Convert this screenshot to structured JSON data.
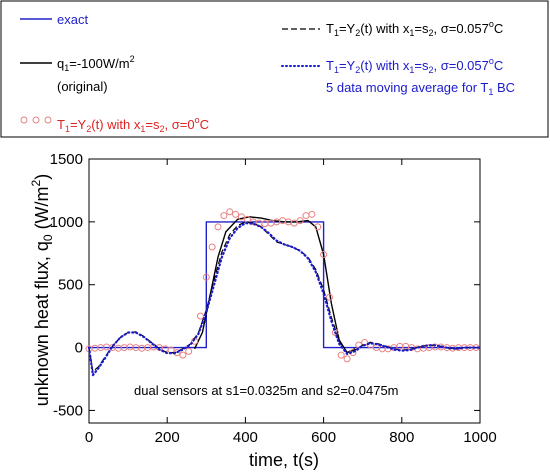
{
  "chart_data": {
    "type": "line",
    "xlabel": "time, t(s)",
    "ylabel": "unknown heat flux, q0 (W/m2)",
    "xlim": [
      0,
      1000
    ],
    "ylim": [
      -600,
      1500
    ],
    "x_ticks": [
      0,
      200,
      400,
      600,
      800,
      1000
    ],
    "y_ticks": [
      -500,
      0,
      500,
      1000,
      1500
    ],
    "annotation": "dual sensors at s1=0.0325m and s2=0.0475m",
    "legend_position": "top, outside plot",
    "legend": {
      "exact": "exact",
      "original_main": "q1=-100W/m2",
      "original_sub": "(original)",
      "sigma0": "T1=Y2(t)  with  x1=s2, σ=0°C",
      "sigma057": "T1=Y2(t)  with  x1=s2, σ=0.057°C",
      "moving_avg_main": "T1=Y2(t)  with  x1=s2, σ=0.057°C",
      "moving_avg_sub": "5 data moving average for T1 BC"
    },
    "series": [
      {
        "name": "exact",
        "style": "solid",
        "color": "#2222cc",
        "x": [
          0,
          300,
          300,
          600,
          600,
          1000
        ],
        "y": [
          0,
          0,
          1000,
          1000,
          0,
          0
        ]
      },
      {
        "name": "q1=-100W/m2 (original)",
        "style": "solid",
        "color": "#000000",
        "x": [
          270,
          290,
          310,
          330,
          350,
          380,
          410,
          440,
          470,
          500,
          530,
          560,
          580,
          600,
          620,
          640,
          660,
          680
        ],
        "y": [
          -10,
          120,
          420,
          720,
          920,
          1020,
          1040,
          1030,
          1010,
          1000,
          1000,
          1010,
          960,
          740,
          350,
          60,
          -40,
          -10
        ]
      },
      {
        "name": "T1=Y2(t) with x1=s2, σ=0°C",
        "style": "circles",
        "color": "#e88080",
        "x": [
          0,
          15,
          30,
          45,
          60,
          75,
          90,
          105,
          120,
          135,
          150,
          165,
          180,
          195,
          210,
          225,
          240,
          255,
          270,
          285,
          300,
          315,
          330,
          345,
          360,
          375,
          390,
          405,
          420,
          435,
          450,
          465,
          480,
          495,
          510,
          525,
          540,
          555,
          570,
          585,
          600,
          615,
          630,
          645,
          660,
          675,
          690,
          705,
          720,
          735,
          750,
          765,
          780,
          795,
          810,
          825,
          840,
          855,
          870,
          885,
          900,
          915,
          930,
          945,
          960,
          975,
          990
        ],
        "y": [
          -10,
          -5,
          0,
          5,
          0,
          -5,
          0,
          5,
          0,
          -5,
          0,
          5,
          0,
          -10,
          -20,
          -40,
          -60,
          -30,
          50,
          250,
          560,
          800,
          960,
          1050,
          1080,
          1060,
          1040,
          1020,
          1000,
          990,
          985,
          990,
          1000,
          1010,
          1000,
          990,
          1010,
          1050,
          1060,
          960,
          740,
          400,
          120,
          -60,
          -90,
          -40,
          20,
          40,
          20,
          0,
          -10,
          -10,
          0,
          10,
          10,
          0,
          -10,
          -5,
          0,
          5,
          5,
          0,
          -5,
          0,
          0,
          0,
          0
        ]
      },
      {
        "name": "T1=Y2(t) with x1=s2, σ=0.057°C",
        "style": "dashed",
        "color": "#000000",
        "x": [
          0,
          10,
          25,
          40,
          60,
          80,
          100,
          120,
          140,
          160,
          180,
          200,
          220,
          240,
          260,
          280,
          300,
          320,
          340,
          360,
          380,
          400,
          420,
          440,
          460,
          480,
          500,
          520,
          540,
          560,
          580,
          600,
          620,
          640,
          660,
          680,
          700,
          720,
          740,
          760,
          780,
          800,
          820,
          840,
          860,
          880,
          900,
          920,
          940,
          960,
          980,
          1000
        ],
        "y": [
          0,
          -190,
          -150,
          -80,
          10,
          80,
          120,
          125,
          90,
          40,
          -10,
          -40,
          -40,
          -10,
          30,
          120,
          300,
          540,
          760,
          900,
          970,
          1000,
          990,
          960,
          900,
          840,
          820,
          800,
          770,
          720,
          620,
          460,
          240,
          50,
          -40,
          -20,
          20,
          40,
          30,
          10,
          -10,
          -20,
          -15,
          0,
          15,
          20,
          10,
          -5,
          -10,
          0,
          0,
          0
        ]
      },
      {
        "name": "T1=Y2(t) with x1=s2, σ=0.057°C, 5 data moving average for T1 BC",
        "style": "dotted",
        "color": "#1a1acc",
        "x": [
          0,
          10,
          25,
          40,
          60,
          80,
          100,
          120,
          140,
          160,
          180,
          200,
          220,
          240,
          260,
          280,
          300,
          320,
          340,
          360,
          380,
          400,
          420,
          440,
          460,
          480,
          500,
          520,
          540,
          560,
          580,
          600,
          620,
          640,
          660,
          680,
          700,
          720,
          740,
          760,
          780,
          800,
          820,
          840,
          860,
          880,
          900,
          920,
          940,
          960,
          980,
          1000
        ],
        "y": [
          0,
          -220,
          -160,
          -90,
          10,
          80,
          120,
          120,
          85,
          35,
          -15,
          -45,
          -45,
          -15,
          25,
          110,
          280,
          500,
          720,
          870,
          950,
          990,
          985,
          960,
          910,
          850,
          820,
          800,
          770,
          710,
          600,
          430,
          210,
          30,
          -50,
          -30,
          15,
          35,
          25,
          5,
          -15,
          -25,
          -20,
          0,
          15,
          20,
          10,
          -5,
          -10,
          0,
          0,
          0
        ]
      }
    ]
  }
}
